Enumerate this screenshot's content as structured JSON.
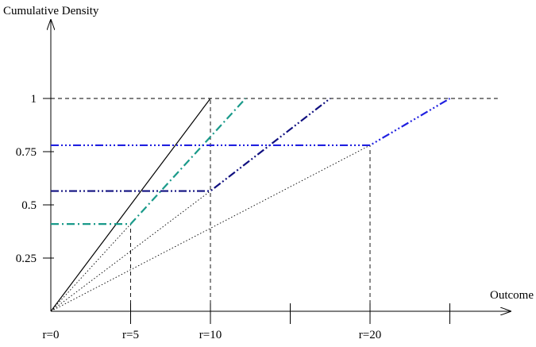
{
  "chart_data": {
    "type": "line",
    "ylabel": "Cumulative Density",
    "xlabel": "Outcome",
    "xlim": [
      0,
      29
    ],
    "ylim": [
      0,
      1.3
    ],
    "x_ticks": [
      {
        "value": 0,
        "label": "r=0"
      },
      {
        "value": 5,
        "label": "r=5"
      },
      {
        "value": 10,
        "label": "r=10"
      },
      {
        "value": 15,
        "label": ""
      },
      {
        "value": 20,
        "label": "r=20"
      },
      {
        "value": 25,
        "label": ""
      }
    ],
    "y_ticks": [
      {
        "value": 0.25,
        "label": "0.25"
      },
      {
        "value": 0.5,
        "label": "0.5"
      },
      {
        "value": 0.75,
        "label": "0.75"
      },
      {
        "value": 1,
        "label": "1"
      }
    ],
    "reference_lines": [
      {
        "kind": "horizontal",
        "y": 1,
        "x_from": 0,
        "x_to": 28,
        "style": "dashed"
      },
      {
        "kind": "vertical",
        "x": 5,
        "y_from": 0,
        "y_to": 0.41,
        "style": "dashed"
      },
      {
        "kind": "vertical",
        "x": 10,
        "y_from": 0,
        "y_to": 1,
        "style": "dashed"
      },
      {
        "kind": "vertical",
        "x": 20,
        "y_from": 0,
        "y_to": 0.78,
        "style": "dashed"
      },
      {
        "kind": "diagonal",
        "from": [
          0,
          0
        ],
        "to": [
          5,
          0.41
        ],
        "style": "dotted"
      },
      {
        "kind": "diagonal",
        "from": [
          0,
          0
        ],
        "to": [
          10,
          0.565
        ],
        "style": "dotted"
      },
      {
        "kind": "diagonal",
        "from": [
          0,
          0
        ],
        "to": [
          20,
          0.78
        ],
        "style": "dotted"
      }
    ],
    "series": [
      {
        "style": "solid",
        "color": "#000000",
        "points": [
          [
            0,
            0
          ],
          [
            10,
            1
          ]
        ]
      },
      {
        "style": "dash-dot",
        "color": "#1a9a8a",
        "points": [
          [
            0,
            0.41
          ],
          [
            5,
            0.41
          ],
          [
            12.2,
            1
          ]
        ]
      },
      {
        "style": "dash-dot-dot",
        "color": "#101080",
        "points": [
          [
            0,
            0.565
          ],
          [
            10,
            0.565
          ],
          [
            17.5,
            1
          ]
        ]
      },
      {
        "style": "dash-dot-dot-dot",
        "color": "#2020e0",
        "points": [
          [
            0,
            0.78
          ],
          [
            20,
            0.78
          ],
          [
            25,
            1
          ]
        ]
      }
    ]
  }
}
